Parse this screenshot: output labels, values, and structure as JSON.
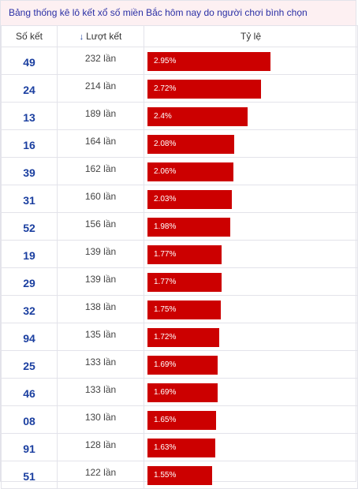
{
  "caption": "Bảng thống kê lô kết xổ số miền Bắc hôm nay do người chơi bình chọn",
  "headers": {
    "number": "Số kết",
    "count_arrow": "↓",
    "count": "Lượt kết",
    "ratio": "Tỷ lệ"
  },
  "colors": {
    "bar": "#cc0000",
    "number_text": "#1b3fa0",
    "caption_bg": "#fdf0f2"
  },
  "rows": [
    {
      "number": "49",
      "count": "232 lần",
      "ratio_label": "2.95%",
      "ratio": 2.95
    },
    {
      "number": "24",
      "count": "214 lần",
      "ratio_label": "2.72%",
      "ratio": 2.72
    },
    {
      "number": "13",
      "count": "189 lần",
      "ratio_label": "2.4%",
      "ratio": 2.4
    },
    {
      "number": "16",
      "count": "164 lần",
      "ratio_label": "2.08%",
      "ratio": 2.08
    },
    {
      "number": "39",
      "count": "162 lần",
      "ratio_label": "2.06%",
      "ratio": 2.06
    },
    {
      "number": "31",
      "count": "160 lần",
      "ratio_label": "2.03%",
      "ratio": 2.03
    },
    {
      "number": "52",
      "count": "156 lần",
      "ratio_label": "1.98%",
      "ratio": 1.98
    },
    {
      "number": "19",
      "count": "139 lần",
      "ratio_label": "1.77%",
      "ratio": 1.77
    },
    {
      "number": "29",
      "count": "139 lần",
      "ratio_label": "1.77%",
      "ratio": 1.77
    },
    {
      "number": "32",
      "count": "138 lần",
      "ratio_label": "1.75%",
      "ratio": 1.75
    },
    {
      "number": "94",
      "count": "135 lần",
      "ratio_label": "1.72%",
      "ratio": 1.72
    },
    {
      "number": "25",
      "count": "133 lần",
      "ratio_label": "1.69%",
      "ratio": 1.69
    },
    {
      "number": "46",
      "count": "133 lần",
      "ratio_label": "1.69%",
      "ratio": 1.69
    },
    {
      "number": "08",
      "count": "130 lần",
      "ratio_label": "1.65%",
      "ratio": 1.65
    },
    {
      "number": "91",
      "count": "128 lần",
      "ratio_label": "1.63%",
      "ratio": 1.63
    },
    {
      "number": "51",
      "count": "122 lần",
      "ratio_label": "1.55%",
      "ratio": 1.55
    }
  ]
}
